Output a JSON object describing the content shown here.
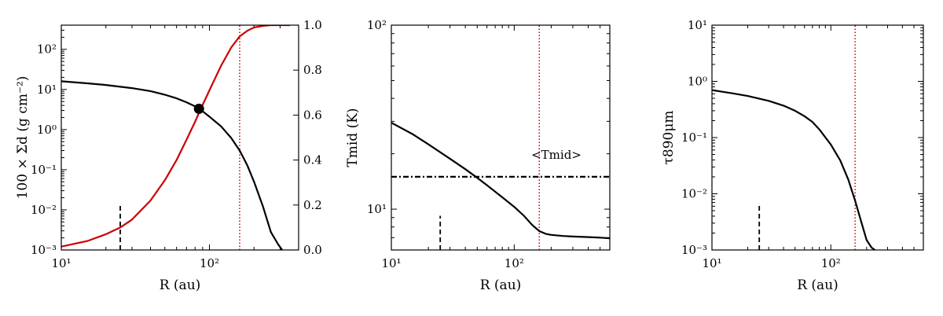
{
  "chart_data": [
    {
      "type": "line",
      "xlabel": "R (au)",
      "ylabel": "100 × Σd (g cm⁻²)",
      "y2label": "",
      "xscale": "log",
      "yscale": "log",
      "xlim": [
        10,
        400
      ],
      "ylim": [
        0.001,
        400
      ],
      "y2lim": [
        0.0,
        1.0
      ],
      "x_ticks": [
        {
          "v": 10,
          "label": "10¹"
        },
        {
          "v": 100,
          "label": "10²"
        }
      ],
      "y_ticks": [
        {
          "v": 0.001,
          "label": "10⁻³"
        },
        {
          "v": 0.01,
          "label": "10⁻²"
        },
        {
          "v": 0.1,
          "label": "10⁻¹"
        },
        {
          "v": 1,
          "label": "10⁰"
        },
        {
          "v": 10,
          "label": "10¹"
        },
        {
          "v": 100,
          "label": "10²"
        }
      ],
      "y2_ticks": [
        {
          "v": 0.0,
          "label": "0.0"
        },
        {
          "v": 0.2,
          "label": "0.2"
        },
        {
          "v": 0.4,
          "label": "0.4"
        },
        {
          "v": 0.6,
          "label": "0.6"
        },
        {
          "v": 0.8,
          "label": "0.8"
        },
        {
          "v": 1.0,
          "label": "1.0"
        }
      ],
      "series": [
        {
          "axis": "left",
          "color": "#000000",
          "style": "solid",
          "x": [
            10,
            15,
            20,
            30,
            40,
            50,
            60,
            70,
            80,
            85,
            90,
            100,
            120,
            140,
            160,
            180,
            200,
            230,
            260,
            290,
            310
          ],
          "y": [
            16,
            14.2,
            12.9,
            10.8,
            9.1,
            7.4,
            6.0,
            4.8,
            3.8,
            3.3,
            2.85,
            2.1,
            1.2,
            0.62,
            0.3,
            0.13,
            0.05,
            0.012,
            0.0028,
            0.0014,
            0.001
          ]
        },
        {
          "axis": "right",
          "color": "#cc0000",
          "style": "solid",
          "x": [
            10,
            15,
            20,
            25,
            30,
            40,
            50,
            60,
            70,
            80,
            85,
            100,
            120,
            140,
            160,
            180,
            200,
            230,
            260,
            300,
            320,
            350
          ],
          "y": [
            0.015,
            0.04,
            0.07,
            0.1,
            0.135,
            0.22,
            0.31,
            0.4,
            0.49,
            0.57,
            0.61,
            0.71,
            0.82,
            0.9,
            0.95,
            0.975,
            0.99,
            0.997,
            1.0,
            1.0,
            1.0,
            1.0
          ]
        }
      ],
      "markers": [
        {
          "x": 85,
          "y": 3.3,
          "color": "#000000"
        }
      ],
      "vlines": [
        {
          "x": 25,
          "y0": 0.001,
          "y1": 0.013,
          "color": "#000000",
          "style": "dashed"
        },
        {
          "x": 160,
          "y0": 0.001,
          "y1": 400,
          "color": "#cc0000",
          "style": "dotted"
        }
      ]
    },
    {
      "type": "line",
      "xlabel": "R (au)",
      "ylabel": "Tmid (K)",
      "xscale": "log",
      "yscale": "log",
      "xlim": [
        10,
        600
      ],
      "ylim": [
        6,
        100
      ],
      "x_ticks": [
        {
          "v": 10,
          "label": "10¹"
        },
        {
          "v": 100,
          "label": "10²"
        }
      ],
      "y_ticks": [
        {
          "v": 10,
          "label": "10¹"
        },
        {
          "v": 100,
          "label": "10²"
        }
      ],
      "annotation": "<Tmid>",
      "series": [
        {
          "color": "#000000",
          "style": "solid",
          "x": [
            10,
            15,
            20,
            30,
            40,
            50,
            60,
            80,
            100,
            120,
            140,
            160,
            180,
            200,
            250,
            300,
            400,
            500,
            600
          ],
          "y": [
            29.5,
            25.5,
            22.5,
            18.8,
            16.5,
            14.8,
            13.5,
            11.6,
            10.3,
            9.2,
            8.2,
            7.6,
            7.35,
            7.25,
            7.15,
            7.1,
            7.05,
            7.0,
            6.95
          ]
        },
        {
          "color": "#000000",
          "style": "dashdot",
          "x": [
            10,
            600
          ],
          "y": [
            15,
            15
          ]
        }
      ],
      "vlines": [
        {
          "x": 25,
          "y0": 6,
          "y1": 9.2,
          "color": "#000000",
          "style": "dashed"
        },
        {
          "x": 160,
          "y0": 6,
          "y1": 100,
          "color": "#cc0000",
          "style": "dotted"
        }
      ]
    },
    {
      "type": "line",
      "xlabel": "R (au)",
      "ylabel": "τ890μm",
      "xscale": "log",
      "yscale": "log",
      "xlim": [
        10,
        600
      ],
      "ylim": [
        0.001,
        10
      ],
      "x_ticks": [
        {
          "v": 10,
          "label": "10¹"
        },
        {
          "v": 100,
          "label": "10²"
        }
      ],
      "y_ticks": [
        {
          "v": 0.001,
          "label": "10⁻³"
        },
        {
          "v": 0.01,
          "label": "10⁻²"
        },
        {
          "v": 0.1,
          "label": "10⁻¹"
        },
        {
          "v": 1,
          "label": "10⁰"
        },
        {
          "v": 10,
          "label": "10¹"
        }
      ],
      "series": [
        {
          "color": "#000000",
          "style": "solid",
          "x": [
            10,
            15,
            20,
            30,
            40,
            50,
            60,
            70,
            80,
            100,
            120,
            140,
            160,
            180,
            200,
            220,
            235
          ],
          "y": [
            0.7,
            0.61,
            0.55,
            0.45,
            0.37,
            0.3,
            0.24,
            0.19,
            0.14,
            0.075,
            0.039,
            0.018,
            0.0075,
            0.0032,
            0.0015,
            0.0011,
            0.001
          ]
        }
      ],
      "vlines": [
        {
          "x": 25,
          "y0": 0.001,
          "y1": 0.0065,
          "color": "#000000",
          "style": "dashed"
        },
        {
          "x": 160,
          "y0": 0.001,
          "y1": 10,
          "color": "#cc0000",
          "style": "dotted"
        }
      ]
    }
  ]
}
